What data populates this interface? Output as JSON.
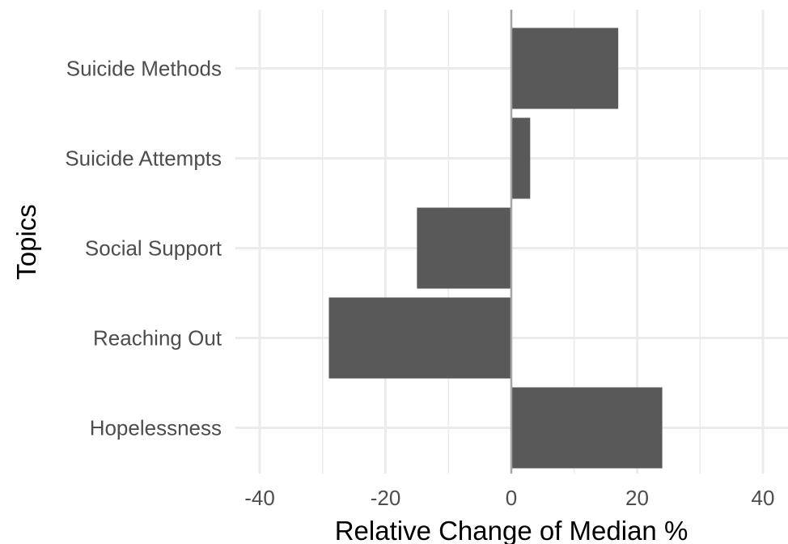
{
  "chart_data": {
    "type": "bar",
    "orientation": "horizontal",
    "title": "",
    "xlabel": "Relative Change of Median %",
    "ylabel": "Topics",
    "categories": [
      "Hopelessness",
      "Reaching Out",
      "Social Support",
      "Suicide Attempts",
      "Suicide Methods"
    ],
    "values": [
      24,
      -29,
      -15,
      3,
      17
    ],
    "xlim": [
      -40,
      40
    ],
    "xticks": [
      -40,
      -20,
      0,
      20,
      40
    ],
    "xtick_labels": [
      "-40",
      "-20",
      "0",
      "20",
      "40"
    ],
    "grid": true,
    "bar_color": "#595959",
    "zero_line_color": "#a6a6a6",
    "grid_color": "#ebebeb"
  }
}
